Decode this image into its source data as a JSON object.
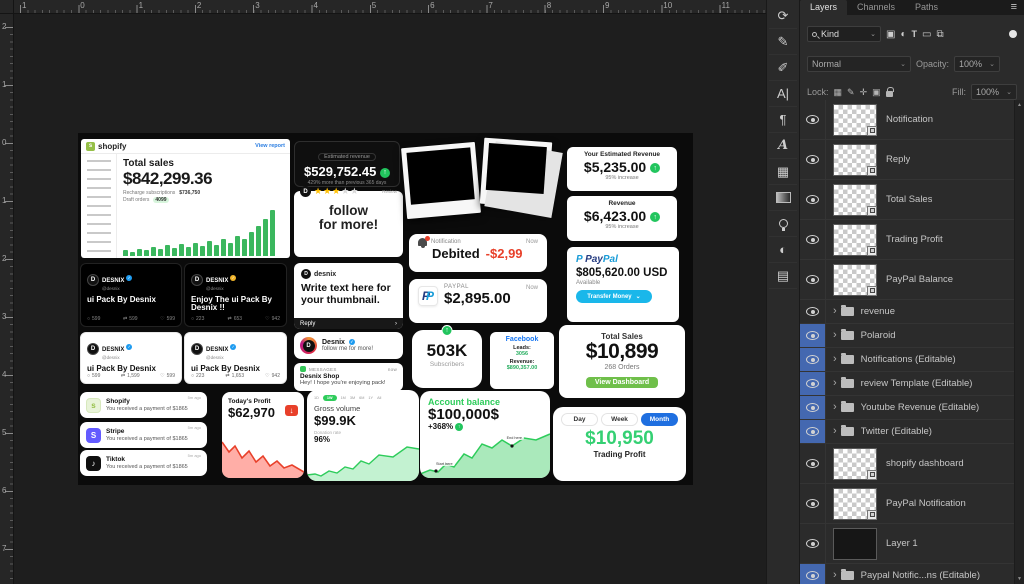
{
  "rulers": {
    "top_labels": [
      "1",
      "0",
      "1",
      "2",
      "3",
      "4",
      "5",
      "6",
      "7",
      "8",
      "9",
      "10",
      "11"
    ],
    "left_labels": [
      "2",
      "1",
      "0",
      "1",
      "2",
      "3",
      "4",
      "5",
      "6",
      "7"
    ]
  },
  "dock_icons": [
    "history-icon",
    "brush-settings-icon",
    "brushes-icon",
    "character-icon",
    "paragraph-icon",
    "glyphs-icon",
    "swatches-icon",
    "gradients-icon",
    "learn-icon",
    "adjustments-icon",
    "libraries-icon"
  ],
  "layers_panel": {
    "tabs": [
      {
        "label": "Layers",
        "active": true
      },
      {
        "label": "Channels",
        "active": false
      },
      {
        "label": "Paths",
        "active": false
      }
    ],
    "menu_icon": "≡",
    "filter_label": "Kind",
    "blend_mode": "Normal",
    "opacity_label": "Opacity:",
    "opacity_value": "100%",
    "lock_label": "Lock:",
    "fill_label": "Fill:",
    "fill_value": "100%",
    "rows": [
      {
        "name": "Notification",
        "type": "smart",
        "eye_highlight": false
      },
      {
        "name": "Reply",
        "type": "smart",
        "eye_highlight": false
      },
      {
        "name": "Total Sales",
        "type": "smart",
        "eye_highlight": false
      },
      {
        "name": "Trading Profit",
        "type": "smart",
        "eye_highlight": false
      },
      {
        "name": "PayPal Balance",
        "type": "smart",
        "eye_highlight": false
      },
      {
        "name": "revenue",
        "type": "group",
        "eye_highlight": false
      },
      {
        "name": "Polaroid",
        "type": "group",
        "eye_highlight": true
      },
      {
        "name": "Notifications (Editable)",
        "type": "group",
        "eye_highlight": true
      },
      {
        "name": "review Template (Editable)",
        "type": "group",
        "eye_highlight": true
      },
      {
        "name": "Youtube Revenue (Editable)",
        "type": "group",
        "eye_highlight": true
      },
      {
        "name": "Twitter (Editable)",
        "type": "group",
        "eye_highlight": true
      },
      {
        "name": "shopify dashboard",
        "type": "smart",
        "eye_highlight": false
      },
      {
        "name": "PayPal Notification",
        "type": "smart",
        "eye_highlight": false
      },
      {
        "name": "Layer 1",
        "type": "pixel",
        "eye_highlight": false
      },
      {
        "name": "Paypal Notific...ns (Editable)",
        "type": "group",
        "eye_highlight": true
      }
    ]
  },
  "canvas": {
    "shopify_dashboard": {
      "brand": "shopify",
      "link": "View report",
      "title": "Total sales",
      "amount": "$842,299.36",
      "stat1_label": "Recharge subscriptions",
      "stat1_value": "$736,750",
      "stat2_label": "Draft orders",
      "stat2_value": "4099",
      "bars": [
        12,
        9,
        16,
        13,
        20,
        15,
        24,
        18,
        26,
        20,
        28,
        22,
        32,
        24,
        36,
        28,
        44,
        38,
        52,
        66,
        80,
        100
      ]
    },
    "estimated_revenue": {
      "label": "Estimated revenue",
      "amount": "$529,752.45",
      "note": "429% more than previous 365 days"
    },
    "review_card": {
      "rating": 3,
      "max": 5,
      "note": "Review",
      "line1": "follow",
      "line2": "for more!"
    },
    "estimate_cards": [
      {
        "title": "Your Estimated Revenue",
        "amount": "$5,235.00",
        "note": "95% increase"
      },
      {
        "title": "Revenue",
        "amount": "$6,423.00",
        "note": "95% increase"
      }
    ],
    "debited_notification": {
      "app": "Notification",
      "time": "Now",
      "label": "Debited",
      "amount": "-$2,99"
    },
    "paypal_payment": {
      "app": "PAYPAL",
      "time": "Now",
      "amount": "$2,895.00"
    },
    "paypal_balance": {
      "brand_p1": "Pay",
      "brand_p2": "Pal",
      "amount": "$805,620.00 USD",
      "label": "Available",
      "button": "Transfer Money"
    },
    "tweets": [
      {
        "name": "DESNIX",
        "handle": "@desnix",
        "text": "ui Pack By Desnix",
        "replies": "599",
        "retweets": "599",
        "likes": "599"
      },
      {
        "name": "DESNIX",
        "handle": "@desnix",
        "text": "Enjoy The ui Pack By Desnix !!",
        "replies": "223",
        "retweets": "653",
        "likes": "942"
      },
      {
        "name": "DESNIX",
        "handle": "@desnix",
        "text": "ui Pack By Desnix",
        "replies": "599",
        "retweets": "1,599",
        "likes": "599"
      },
      {
        "name": "DESNIX",
        "handle": "@desnix",
        "text": "ui Pack By Desnix",
        "replies": "223",
        "retweets": "1,653",
        "likes": "942"
      }
    ],
    "thumbnail_card": {
      "name": "desnix",
      "text": "Write text here for your thumbnail.",
      "footer": "Reply",
      "footer_arrow": "›"
    },
    "insta_follow": {
      "name": "Desnix",
      "text": "follow me for more!"
    },
    "message_notification": {
      "app": "MESSAGES",
      "time": "now",
      "title": "Desnix Shop",
      "text": "Hey! I hope you're enjoying pack!"
    },
    "subscribers": {
      "count": "503K",
      "label": "Subscribers"
    },
    "facebook_card": {
      "title": "Facebook",
      "leads_label": "Leads:",
      "leads": "3056",
      "revenue_label": "Revenue:",
      "revenue": "$890,357.00"
    },
    "total_sales_card": {
      "title": "Total Sales",
      "amount": "$10,899",
      "orders": "268 Orders",
      "button": "View Dashboard"
    },
    "payment_notifications": [
      {
        "app": "Shopify",
        "text": "You received a payment of $1865",
        "time": "5m ago"
      },
      {
        "app": "Stripe",
        "text": "You received a payment of $1865",
        "time": "5m ago"
      },
      {
        "app": "Tiktok",
        "text": "You received a payment of $1865",
        "time": "5m ago"
      }
    ],
    "todays_profit": {
      "title": "Today's Profit",
      "amount": "$62,970"
    },
    "gross_volume": {
      "tabs": [
        "1D",
        "1W",
        "1M",
        "3M",
        "6M",
        "1Y",
        "All"
      ],
      "active_tab": 1,
      "title": "Gross volume",
      "amount": "$99.9K",
      "rate_label": "Donation rate",
      "rate": "96%"
    },
    "account_balance": {
      "title": "Account balance",
      "amount": "$100,000$",
      "change": "+368%",
      "start_label": "Start here",
      "end_label": "End here"
    },
    "trading_profit": {
      "tabs": [
        "Day",
        "Week",
        "Month"
      ],
      "active_tab": 2,
      "amount": "$10,950",
      "label": "Trading Profit"
    }
  },
  "colors": {
    "eye_highlight_blue": "#4468b0",
    "panel_background": "#2b2b2b",
    "canvas_background": "#0b0b0b",
    "green": "#22c55e",
    "chart_green": "#2ecc5b",
    "profit_green": "#35d073",
    "red": "#e8402a",
    "twitter_blue": "#1d9bf0",
    "gold_badge": "#f0b429",
    "paypal_dark_blue": "#253b80",
    "paypal_light_blue": "#179bd7",
    "paypal_button_blue": "#1ab7ea",
    "facebook_blue": "#1877f2",
    "shopify_green": "#95bf47",
    "stripe_purple": "#635bff",
    "star_yellow": "#ffc107",
    "trading_tab_blue": "#1f6fe0"
  }
}
